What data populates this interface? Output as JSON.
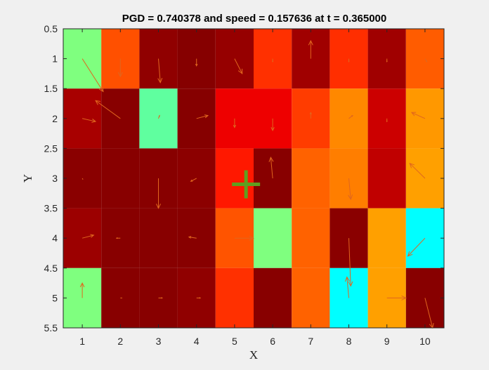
{
  "chart_data": {
    "type": "heatmap",
    "title": "PGD = 0.740378 and speed = 0.157636 at t = 0.365000",
    "xlabel": "X",
    "ylabel": "Y",
    "xlim": [
      0.5,
      10.5
    ],
    "ylim": [
      0.5,
      5.5
    ],
    "y_direction": "reversed",
    "xticks": [
      "1",
      "2",
      "3",
      "4",
      "5",
      "6",
      "7",
      "8",
      "9",
      "10"
    ],
    "yticks": [
      "0.5",
      "1",
      "1.5",
      "2",
      "2.5",
      "3",
      "3.5",
      "4",
      "4.5",
      "5",
      "5.5"
    ],
    "cell_colors": [
      [
        "#7fff7f",
        "#ff5000",
        "#900000",
        "#860000",
        "#960000",
        "#ff3000",
        "#a00000",
        "#ff2e00",
        "#a00000",
        "#ff5c00"
      ],
      [
        "#a80000",
        "#880000",
        "#5fff9f",
        "#860000",
        "#ee0000",
        "#ee0000",
        "#ff3c00",
        "#ff8800",
        "#cc0000",
        "#ff9800"
      ],
      [
        "#8a0000",
        "#880000",
        "#880000",
        "#8c0000",
        "#ff1800",
        "#880000",
        "#ff6200",
        "#ff7e00",
        "#c00000",
        "#ffa000"
      ],
      [
        "#9c0000",
        "#880000",
        "#880000",
        "#880000",
        "#ff5400",
        "#7fff7f",
        "#ff6200",
        "#8a0000",
        "#ffa000",
        "#00ffff"
      ],
      [
        "#7fff7f",
        "#880000",
        "#880000",
        "#900000",
        "#ff3000",
        "#880000",
        "#ff6200",
        "#00ffff",
        "#ffa000",
        "#880000"
      ]
    ],
    "arrows": [
      {
        "x": 1,
        "y": 1,
        "u": 0.55,
        "v": 0.55
      },
      {
        "x": 2,
        "y": 1,
        "u": 0.0,
        "v": 0.3
      },
      {
        "x": 3,
        "y": 1,
        "u": 0.05,
        "v": 0.4
      },
      {
        "x": 4,
        "y": 1,
        "u": 0.0,
        "v": 0.12
      },
      {
        "x": 5,
        "y": 1,
        "u": 0.2,
        "v": 0.25
      },
      {
        "x": 6,
        "y": 1,
        "u": 0.0,
        "v": 0.05
      },
      {
        "x": 7,
        "y": 1,
        "u": 0.0,
        "v": -0.3
      },
      {
        "x": 8,
        "y": 1,
        "u": 0.0,
        "v": 0.05
      },
      {
        "x": 9,
        "y": 1,
        "u": 0.0,
        "v": 0.05
      },
      {
        "x": 10,
        "y": 1,
        "u": 0.05,
        "v": 0.05
      },
      {
        "x": 1,
        "y": 2,
        "u": 0.35,
        "v": 0.05
      },
      {
        "x": 2,
        "y": 2,
        "u": -0.65,
        "v": -0.3
      },
      {
        "x": 3,
        "y": 2,
        "u": 0.03,
        "v": -0.05
      },
      {
        "x": 4,
        "y": 2,
        "u": 0.3,
        "v": -0.05
      },
      {
        "x": 5,
        "y": 2,
        "u": 0.0,
        "v": 0.15
      },
      {
        "x": 6,
        "y": 2,
        "u": 0.0,
        "v": 0.2
      },
      {
        "x": 7,
        "y": 2,
        "u": 0.0,
        "v": -0.1
      },
      {
        "x": 8,
        "y": 2,
        "u": 0.1,
        "v": -0.05
      },
      {
        "x": 9,
        "y": 2,
        "u": 0.0,
        "v": 0.05
      },
      {
        "x": 10,
        "y": 2,
        "u": -0.35,
        "v": -0.1
      },
      {
        "x": 1,
        "y": 3,
        "u": 0.02,
        "v": 0.02
      },
      {
        "x": 2,
        "y": 3,
        "u": 0.0,
        "v": 0.0
      },
      {
        "x": 3,
        "y": 3,
        "u": 0.0,
        "v": 0.5
      },
      {
        "x": 4,
        "y": 3,
        "u": -0.15,
        "v": 0.05
      },
      {
        "x": 5,
        "y": 3,
        "u": 0.0,
        "v": 0.0
      },
      {
        "x": 6,
        "y": 3,
        "u": -0.05,
        "v": -0.35
      },
      {
        "x": 7,
        "y": 3,
        "u": 0.0,
        "v": 0.0
      },
      {
        "x": 8,
        "y": 3,
        "u": 0.05,
        "v": 0.35
      },
      {
        "x": 9,
        "y": 3,
        "u": 0.0,
        "v": 0.0
      },
      {
        "x": 10,
        "y": 3,
        "u": -0.4,
        "v": -0.25
      },
      {
        "x": 1,
        "y": 4,
        "u": 0.3,
        "v": -0.05
      },
      {
        "x": 2,
        "y": 4,
        "u": -0.1,
        "v": 0.0
      },
      {
        "x": 3,
        "y": 4,
        "u": 0.0,
        "v": 0.0
      },
      {
        "x": 4,
        "y": 4,
        "u": -0.2,
        "v": -0.02
      },
      {
        "x": 5,
        "y": 4,
        "u": 0.5,
        "v": 0.0
      },
      {
        "x": 6,
        "y": 4,
        "u": 0.0,
        "v": 0.0
      },
      {
        "x": 7,
        "y": 4,
        "u": 0.0,
        "v": 0.0
      },
      {
        "x": 8,
        "y": 4,
        "u": 0.05,
        "v": 0.8
      },
      {
        "x": 9,
        "y": 4,
        "u": 0.0,
        "v": 0.0
      },
      {
        "x": 10,
        "y": 4,
        "u": -0.45,
        "v": 0.3
      },
      {
        "x": 1,
        "y": 5,
        "u": 0.0,
        "v": -0.25
      },
      {
        "x": 2,
        "y": 5,
        "u": 0.05,
        "v": 0.0
      },
      {
        "x": 3,
        "y": 5,
        "u": 0.1,
        "v": 0.0
      },
      {
        "x": 4,
        "y": 5,
        "u": 0.1,
        "v": 0.0
      },
      {
        "x": 5,
        "y": 5,
        "u": 0.0,
        "v": 0.0
      },
      {
        "x": 6,
        "y": 5,
        "u": 0.0,
        "v": 0.0
      },
      {
        "x": 7,
        "y": 5,
        "u": 0.0,
        "v": 0.0
      },
      {
        "x": 8,
        "y": 5,
        "u": -0.05,
        "v": -0.35
      },
      {
        "x": 9,
        "y": 5,
        "u": 0.5,
        "v": 0.0
      },
      {
        "x": 10,
        "y": 5,
        "u": 0.2,
        "v": 0.5
      }
    ],
    "arrow_color": "#e0661e",
    "marker": {
      "x": 5.3,
      "y": 3.1,
      "symbol": "+",
      "color": "#5f9f1f"
    },
    "background": "#f0f0f0"
  }
}
